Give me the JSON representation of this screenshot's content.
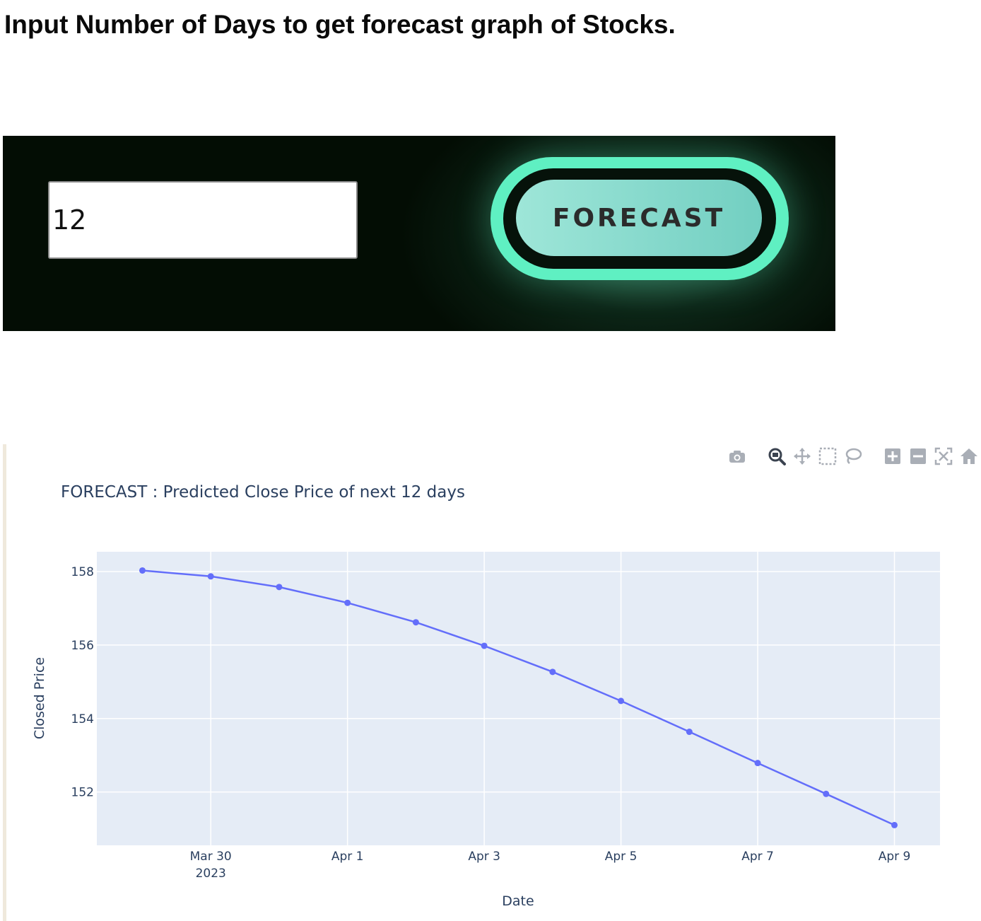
{
  "header": {
    "title": "Input Number of Days to get forecast graph of Stocks."
  },
  "controls": {
    "days_input_value": "12",
    "forecast_button_label": "FORECAST",
    "colors": {
      "panel_bg": "#030d04",
      "ring": "#5ff0c2",
      "button": "#86d9cc"
    }
  },
  "modebar": {
    "icons": [
      "camera-icon",
      "zoom-icon",
      "pan-icon",
      "box-select-icon",
      "lasso-select-icon",
      "zoom-in-icon",
      "zoom-out-icon",
      "autoscale-icon",
      "reset-axes-icon"
    ]
  },
  "chart_data": {
    "type": "line",
    "title": "FORECAST : Predicted Close Price of next 12 days",
    "xlabel": "Date",
    "ylabel": "Closed Price",
    "x": [
      "2023-03-29",
      "2023-03-30",
      "2023-03-31",
      "2023-04-01",
      "2023-04-02",
      "2023-04-03",
      "2023-04-04",
      "2023-04-05",
      "2023-04-06",
      "2023-04-07",
      "2023-04-08",
      "2023-04-09"
    ],
    "series": [
      {
        "values": [
          158.03,
          157.87,
          157.58,
          157.15,
          156.62,
          155.98,
          155.27,
          154.48,
          153.64,
          152.79,
          151.95,
          151.1
        ]
      }
    ],
    "x_ticks": [
      {
        "date": "2023-03-30",
        "label": "Mar 30",
        "sublabel": "2023"
      },
      {
        "date": "2023-04-01",
        "label": "Apr 1"
      },
      {
        "date": "2023-04-03",
        "label": "Apr 3"
      },
      {
        "date": "2023-04-05",
        "label": "Apr 5"
      },
      {
        "date": "2023-04-07",
        "label": "Apr 7"
      },
      {
        "date": "2023-04-09",
        "label": "Apr 9"
      }
    ],
    "y_ticks": [
      152,
      154,
      156,
      158
    ],
    "xlim": [
      "2023-03-28 08:00",
      "2023-04-09 16:00"
    ],
    "ylim": [
      150.55,
      158.54
    ],
    "grid": true,
    "colors": {
      "line": "#636efa",
      "plot_bg": "#e5ecf6",
      "grid": "#ffffff",
      "text": "#2a3f5f"
    }
  }
}
